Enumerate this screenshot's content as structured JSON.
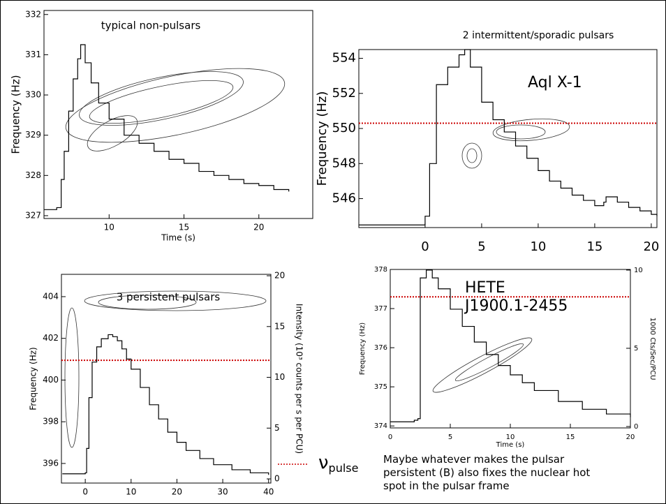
{
  "chart_data": [
    {
      "type": "line",
      "title": "typical non-pulsars",
      "xlabel": "Time (s)",
      "ylabel": "Frequency (Hz)",
      "xlim": [
        5.65,
        23.6
      ],
      "xticks": [
        10,
        15,
        20
      ],
      "ylim": [
        326.93,
        332.1
      ],
      "yticks": [
        327,
        328,
        329,
        330,
        331,
        332
      ],
      "series": [
        {
          "color": "#000000",
          "x": [
            5.65,
            6.5,
            6.8,
            7,
            7.3,
            7.6,
            7.9,
            8.1,
            8.4,
            8.8,
            9.3,
            10,
            11,
            12,
            13,
            14,
            15,
            16,
            17,
            18,
            19,
            20,
            21,
            22
          ],
          "values": [
            327.15,
            327.2,
            327.9,
            328.6,
            329.6,
            330.4,
            330.9,
            331.25,
            330.8,
            330.3,
            329.8,
            329.4,
            329.0,
            328.8,
            328.6,
            328.4,
            328.3,
            328.1,
            328.0,
            327.9,
            327.8,
            327.75,
            327.65,
            327.6
          ]
        }
      ]
    },
    {
      "type": "line",
      "title": "2 intermittent/sporadic pulsars",
      "source_label": "Aql X-1",
      "ylabel": "Frequency (Hz)",
      "xlim": [
        -5.86,
        20.5
      ],
      "xticks": [
        0,
        5,
        10,
        15,
        20
      ],
      "ylim": [
        544.35,
        554.5
      ],
      "yticks": [
        546,
        548,
        550,
        552,
        554
      ],
      "reference_line": {
        "value": 550.3,
        "color": "#cc0000"
      },
      "series": [
        {
          "color": "#000000",
          "x": [
            -5.86,
            -1,
            0,
            0.4,
            1,
            2,
            3,
            3.5,
            4,
            5,
            6,
            7,
            8,
            9,
            10,
            11,
            12,
            13,
            14,
            15,
            15.8,
            16,
            17,
            18,
            19,
            20,
            20.5
          ],
          "values": [
            544.5,
            544.5,
            545,
            548,
            552.5,
            553.5,
            554.2,
            554.5,
            553.5,
            551.5,
            550.5,
            549.8,
            549,
            548.3,
            547.6,
            547,
            546.6,
            546.2,
            545.9,
            545.6,
            545.8,
            546.1,
            545.8,
            545.5,
            545.3,
            545.1,
            545.0
          ]
        }
      ]
    },
    {
      "type": "line",
      "title": "3 persistent pulsars",
      "ylabel": "Frequency (Hz)",
      "y2label": "Intensity (10³ counts per s per PCU)",
      "xlim": [
        -5.2,
        40.5
      ],
      "xticks": [
        0,
        10,
        20,
        30,
        40
      ],
      "ylim": [
        395.06,
        405.07
      ],
      "yticks": [
        396,
        398,
        400,
        402,
        404
      ],
      "y2lim": [
        -0.41,
        20.14
      ],
      "y2ticks": [
        0,
        5,
        10,
        15,
        20
      ],
      "reference_line": {
        "value": 400.95,
        "color": "#cc0000"
      },
      "series": [
        {
          "color": "#000000",
          "axis": "y2",
          "x": [
            -5,
            -1,
            0,
            0.3,
            0.8,
            1.5,
            2.5,
            3.5,
            5,
            6,
            7,
            8,
            9,
            10,
            12,
            14,
            16,
            18,
            20,
            22,
            25,
            28,
            32,
            36,
            40
          ],
          "values": [
            0.5,
            0.5,
            0.6,
            3,
            8,
            11.5,
            13,
            13.8,
            14.2,
            14,
            13.6,
            12.8,
            11.8,
            10.8,
            9,
            7.3,
            5.9,
            4.6,
            3.6,
            2.8,
            2,
            1.4,
            0.9,
            0.6,
            0.4
          ]
        }
      ]
    },
    {
      "type": "line",
      "title_lines": [
        "HETE",
        "J1900.1-2455"
      ],
      "xlabel": "Time (s)",
      "ylabel": "Frequency (Hz)",
      "y2label": "1000 Cts/Sec/PCU",
      "xlim": [
        0,
        20
      ],
      "xticks": [
        0,
        5,
        10,
        15,
        20
      ],
      "ylim": [
        373.95,
        378
      ],
      "yticks": [
        374,
        375,
        376,
        377,
        378
      ],
      "y2lim": [
        -0.09,
        10.04
      ],
      "y2ticks": [
        0,
        5,
        10
      ],
      "reference_line": {
        "value": 377.3,
        "color": "#cc0000"
      },
      "series": [
        {
          "color": "#000000",
          "axis": "y2",
          "x": [
            0,
            1,
            2,
            2.3,
            2.5,
            3,
            3.5,
            4,
            5,
            6,
            7,
            8,
            9,
            10,
            11,
            12,
            14,
            16,
            18,
            20
          ],
          "values": [
            0.3,
            0.3,
            0.4,
            0.5,
            9.5,
            10,
            9.5,
            8.8,
            7.5,
            6.4,
            5.4,
            4.6,
            3.9,
            3.3,
            2.8,
            2.3,
            1.6,
            1.1,
            0.8,
            0.6
          ]
        }
      ]
    }
  ],
  "pulse_label": {
    "symbol": "ν",
    "subscript": "pulse"
  },
  "note_lines": [
    "Maybe whatever makes the pulsar",
    "persistent (B) also fixes the nuclear hot",
    "spot in the pulsar frame"
  ]
}
